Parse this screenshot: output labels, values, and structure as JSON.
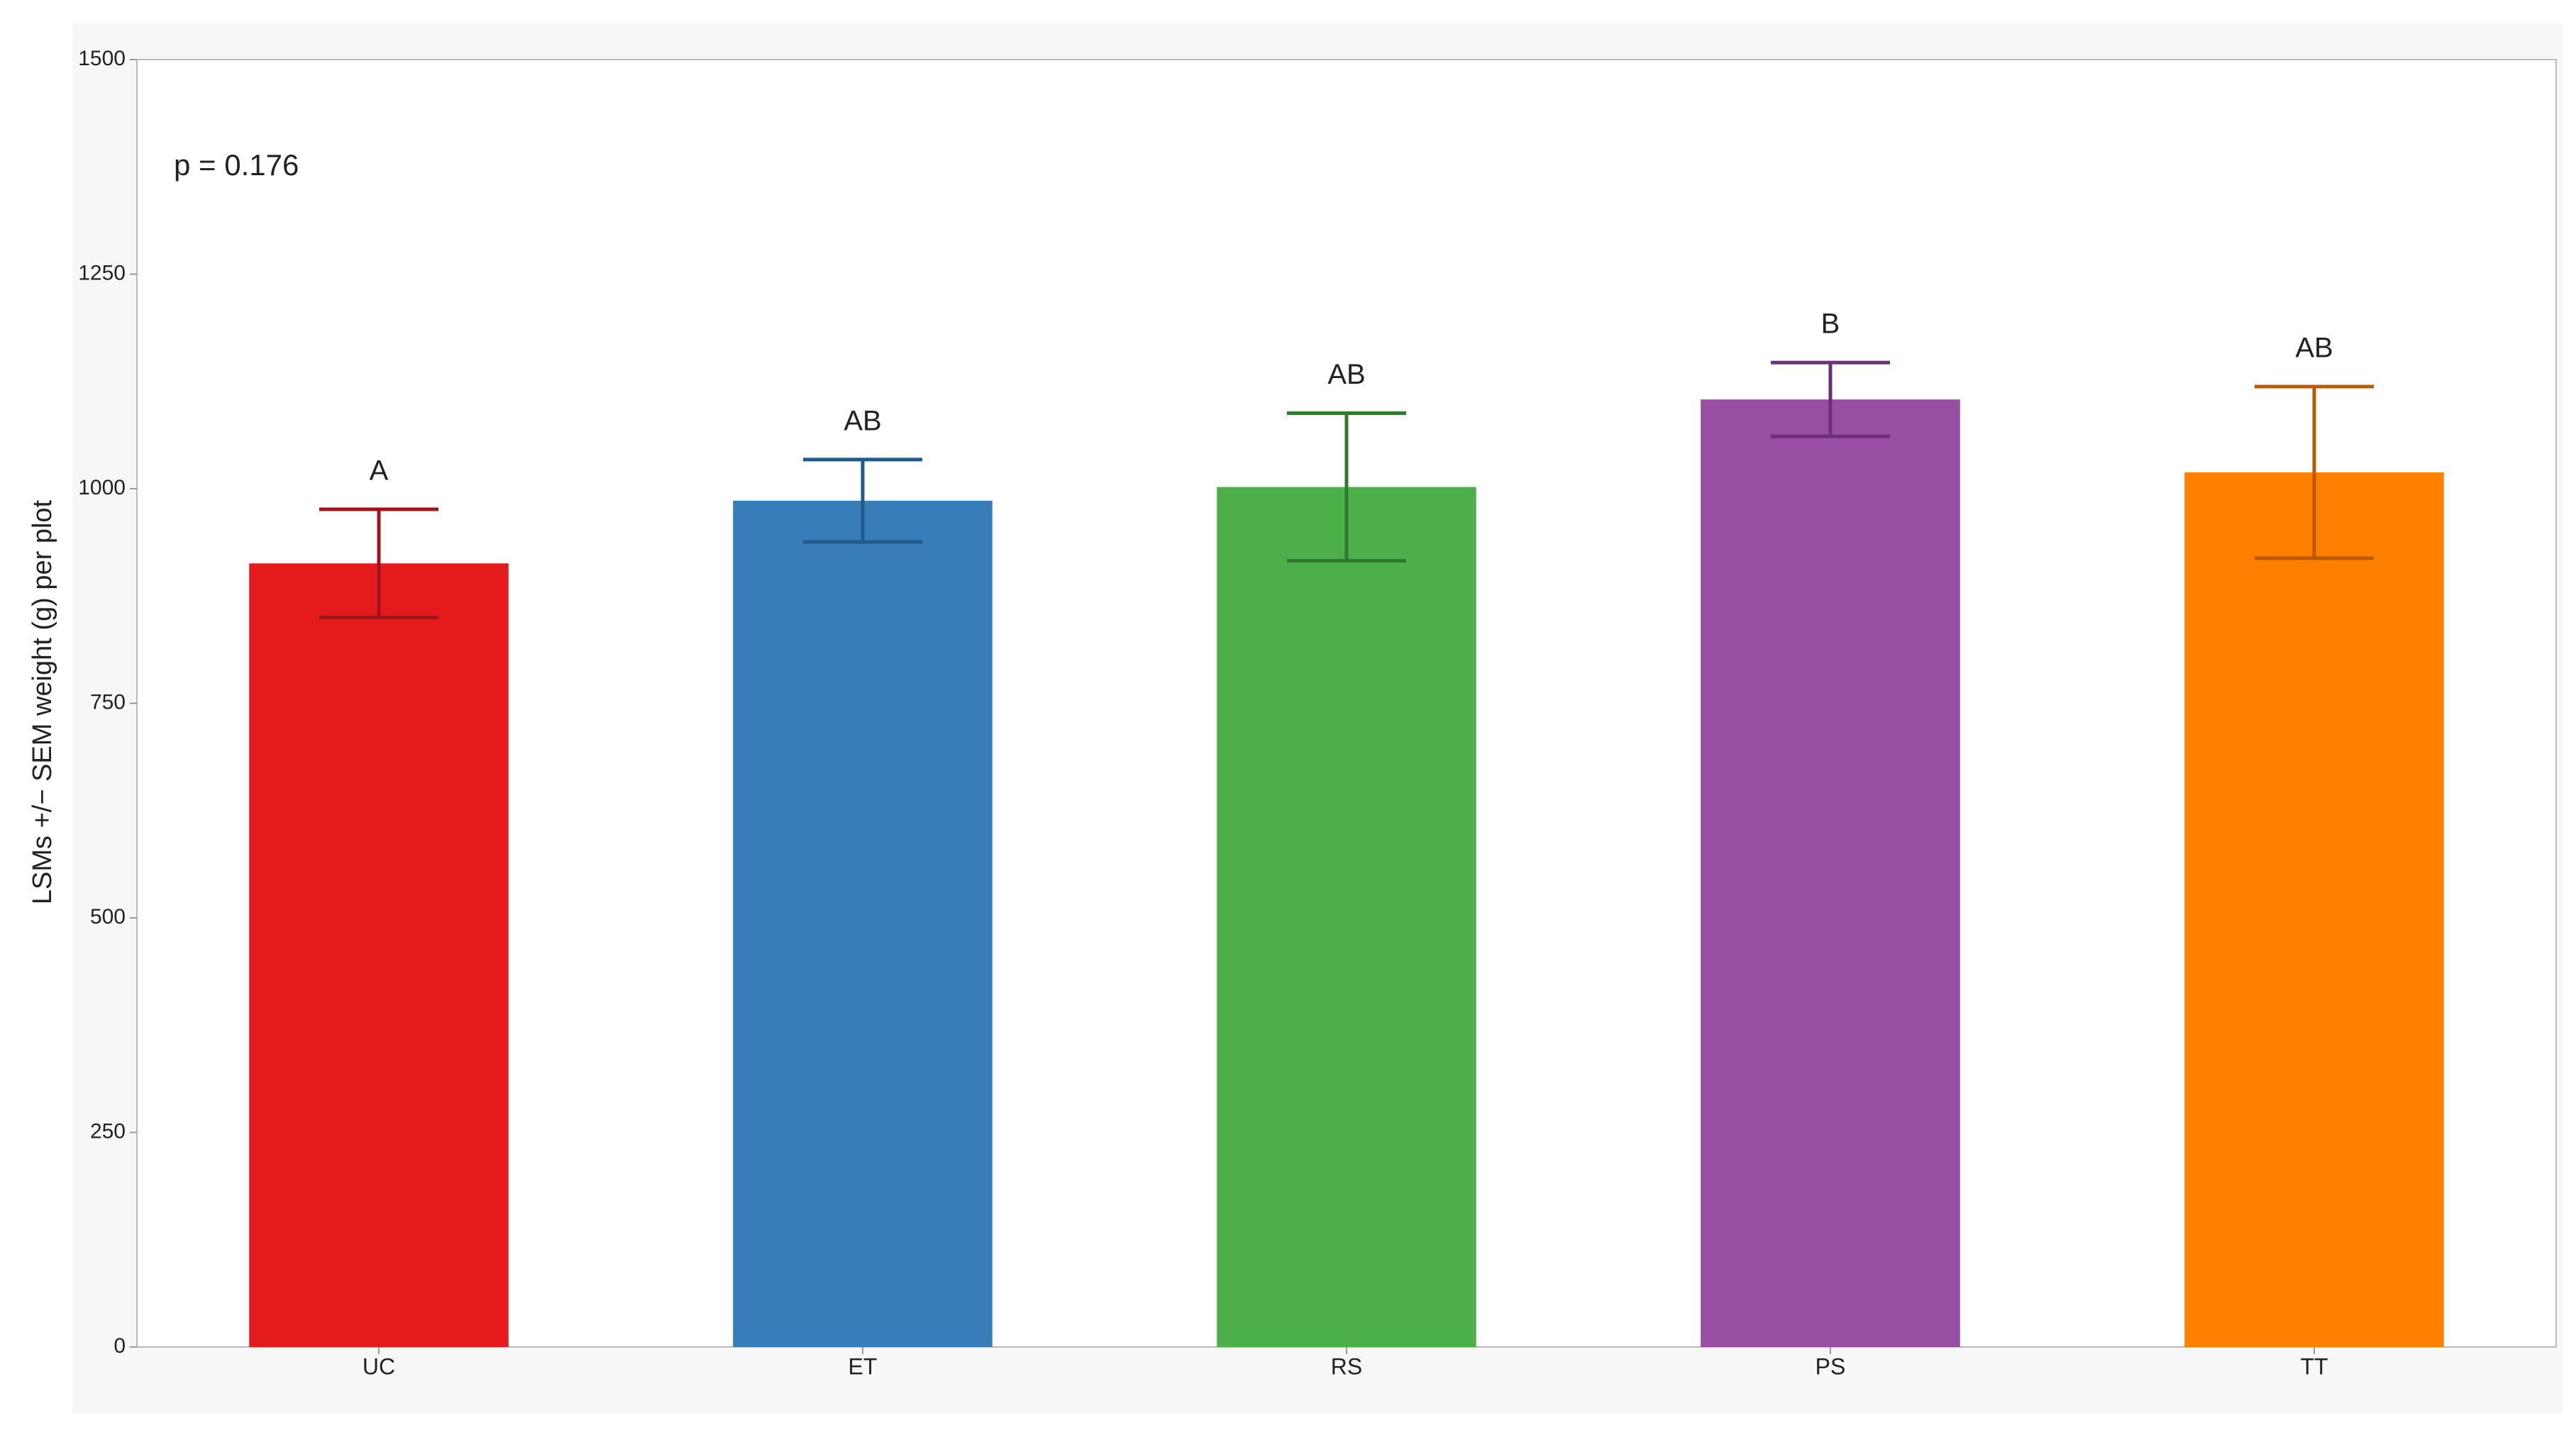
{
  "chart_data": {
    "type": "bar",
    "y_label": "LSMs +/− SEM weight (g) per plot",
    "annotation": "p = 0.176",
    "categories": [
      "UC",
      "ET",
      "RS",
      "PS",
      "TT"
    ],
    "values": [
      913,
      986,
      1002,
      1104,
      1019
    ],
    "errors": [
      63,
      48,
      86,
      43,
      100
    ],
    "group_letters": [
      "A",
      "AB",
      "AB",
      "B",
      "AB"
    ],
    "colors": [
      "#e41a1c",
      "#377eb8",
      "#4daf4a",
      "#984ea3",
      "#ff7f00"
    ],
    "error_colors": [
      "#a3141a",
      "#215a88",
      "#2f7a2c",
      "#6a3274",
      "#b95a00"
    ],
    "ylim": [
      0,
      1500
    ],
    "yticks": [
      0,
      250,
      500,
      750,
      1000,
      1250,
      1500
    ]
  }
}
